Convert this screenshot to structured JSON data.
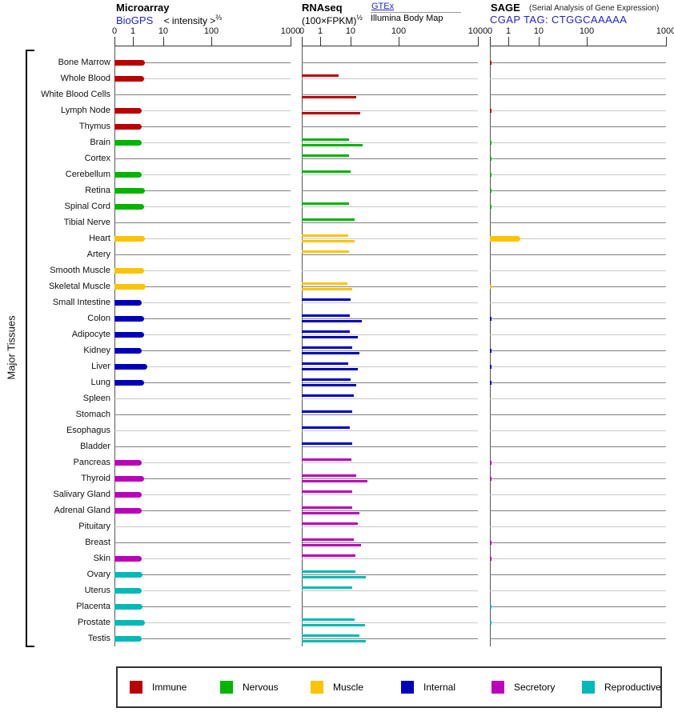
{
  "y_axis_label": "Major Tissues",
  "colors": {
    "link": "#2222cc",
    "immune": "#bb0000",
    "nervous": "#00b400",
    "muscle": "#fbc400",
    "internal": "#0000bb",
    "secretory": "#bb00bb",
    "reproductive": "#00b9b9",
    "row_line_dark": "#828282",
    "row_line_light": "#c9c9c9"
  },
  "header": {
    "panel1": {
      "title": "Microarray",
      "link": "BioGPS",
      "metric": "< intensity >",
      "metric_sup": "⅔"
    },
    "panel2": {
      "title": "RNAseq",
      "metric": "(100×FPKM)",
      "metric_sup": "½",
      "link": "GTEx",
      "sublabel": "Illumina Body Map"
    },
    "panel3": {
      "title": "SAGE",
      "subtitle": "(Serial Analysis of Gene Expression)",
      "link": "CGAP",
      "tag": "TAG: CTGGCAAAAA"
    }
  },
  "axis": {
    "tick_labels": [
      "0",
      "1",
      "10",
      "100",
      "1000"
    ]
  },
  "legend": [
    {
      "label": "Immune",
      "group": "immune"
    },
    {
      "label": "Nervous",
      "group": "nervous"
    },
    {
      "label": "Muscle",
      "group": "muscle"
    },
    {
      "label": "Internal",
      "group": "internal"
    },
    {
      "label": "Secretory",
      "group": "secretory"
    },
    {
      "label": "Reproductive",
      "group": "reproductive"
    }
  ],
  "chart_data": {
    "type": "bar",
    "orientation": "horizontal",
    "x_scale": "nonlinear compressed log-like scale",
    "x_ticks": [
      0,
      1,
      10,
      100,
      1000
    ],
    "panels": [
      "Microarray (BioGPS)",
      "RNAseq (GTEx above line, Illumina Body Map below line)",
      "SAGE (CGAP TAG: CTGGCAAAAA)"
    ],
    "categories": [
      "Bone Marrow",
      "Whole Blood",
      "White Blood Cells",
      "Lymph Node",
      "Thymus",
      "Brain",
      "Cortex",
      "Cerebellum",
      "Retina",
      "Spinal Cord",
      "Tibial Nerve",
      "Heart",
      "Artery",
      "Smooth Muscle",
      "Skeletal Muscle",
      "Small Intestine",
      "Colon",
      "Adipocyte",
      "Kidney",
      "Liver",
      "Lung",
      "Spleen",
      "Stomach",
      "Esophagus",
      "Bladder",
      "Pancreas",
      "Thyroid",
      "Salivary Gland",
      "Adrenal Gland",
      "Pituitary",
      "Breast",
      "Skin",
      "Ovary",
      "Uterus",
      "Placenta",
      "Prostate",
      "Testis"
    ],
    "groups": [
      "immune",
      "immune",
      "immune",
      "immune",
      "immune",
      "nervous",
      "nervous",
      "nervous",
      "nervous",
      "nervous",
      "nervous",
      "muscle",
      "muscle",
      "muscle",
      "muscle",
      "internal",
      "internal",
      "internal",
      "internal",
      "internal",
      "internal",
      "internal",
      "internal",
      "internal",
      "internal",
      "secretory",
      "secretory",
      "secretory",
      "secretory",
      "secretory",
      "secretory",
      "secretory",
      "reproductive",
      "reproductive",
      "reproductive",
      "reproductive",
      "reproductive"
    ],
    "series": [
      {
        "name": "Microarray BioGPS",
        "values": [
          2.5,
          2.3,
          null,
          2.0,
          2.0,
          1.9,
          null,
          2.0,
          2.5,
          2.3,
          null,
          2.5,
          null,
          2.3,
          2.7,
          2.0,
          2.3,
          2.3,
          2.0,
          2.9,
          2.4,
          null,
          null,
          null,
          null,
          1.9,
          2.4,
          1.9,
          2.0,
          null,
          null,
          1.9,
          2.1,
          1.9,
          2.1,
          2.5,
          1.9
        ]
      },
      {
        "name": "RNAseq GTEx",
        "values": [
          null,
          4,
          null,
          null,
          null,
          9,
          9,
          10,
          null,
          9,
          12,
          8.5,
          9,
          null,
          8,
          10,
          9.5,
          9.5,
          11,
          8.5,
          10,
          11.5,
          11,
          9.5,
          11,
          10.5,
          13,
          11,
          11,
          14,
          11.5,
          12.5,
          12.5,
          11,
          null,
          12,
          15
        ]
      },
      {
        "name": "RNAseq Illumina Body Map",
        "values": [
          null,
          null,
          13,
          16,
          null,
          18,
          null,
          null,
          null,
          null,
          null,
          12,
          null,
          null,
          11,
          null,
          17,
          14,
          15,
          14,
          13,
          null,
          null,
          null,
          null,
          null,
          22,
          null,
          15,
          null,
          16.5,
          null,
          21,
          null,
          null,
          20,
          21
        ]
      },
      {
        "name": "SAGE CGAP",
        "values": [
          0.05,
          null,
          null,
          0.05,
          null,
          0.05,
          0.05,
          0.05,
          0.05,
          0.05,
          null,
          2.5,
          null,
          null,
          0.05,
          null,
          0.05,
          null,
          0.05,
          0.05,
          0.05,
          null,
          null,
          null,
          null,
          0.05,
          0.05,
          null,
          null,
          null,
          0.05,
          0.05,
          null,
          null,
          0.05,
          0.05,
          null
        ]
      }
    ]
  }
}
